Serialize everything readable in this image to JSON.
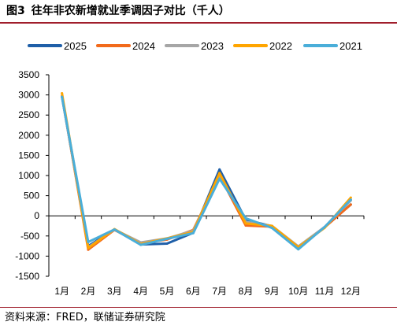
{
  "header": {
    "figure_label": "图3",
    "title": "往年非农新增就业季调因子对比（千人）"
  },
  "footer": {
    "source": "资料来源：FRED，联储证券研究院"
  },
  "chart_data": {
    "type": "line",
    "title": "往年非农新增就业季调因子对比（千人）",
    "xlabel": "",
    "ylabel": "",
    "categories": [
      "1月",
      "2月",
      "3月",
      "4月",
      "5月",
      "6月",
      "7月",
      "8月",
      "9月",
      "10月",
      "11月",
      "12月"
    ],
    "yticks": [
      "3500",
      "3000",
      "2500",
      "2000",
      "1500",
      "1000",
      "500",
      "0",
      "-500",
      "-1000",
      "-1500"
    ],
    "ylim": [
      -1500,
      3500
    ],
    "grid": false,
    "legend_position": "top",
    "series": [
      {
        "name": "2025",
        "color": "#1f5fa8",
        "values": [
          2950,
          -750,
          -340,
          -710,
          -690,
          -420,
          1150,
          -100,
          -260,
          -800,
          -280,
          280
        ]
      },
      {
        "name": "2024",
        "color": "#f26a1b",
        "values": [
          2980,
          -840,
          -350,
          -680,
          -590,
          -350,
          1000,
          -240,
          -270,
          -780,
          -290,
          280
        ]
      },
      {
        "name": "2023",
        "color": "#a6a6a6",
        "values": [
          2970,
          -780,
          -340,
          -660,
          -560,
          -370,
          1020,
          -150,
          -250,
          -760,
          -280,
          380
        ]
      },
      {
        "name": "2022",
        "color": "#ffa500",
        "values": [
          3040,
          -800,
          -330,
          -700,
          -560,
          -400,
          1060,
          -190,
          -250,
          -780,
          -300,
          450
        ]
      },
      {
        "name": "2021",
        "color": "#4aaed9",
        "values": [
          2950,
          -650,
          -340,
          -720,
          -570,
          -430,
          920,
          -60,
          -300,
          -830,
          -280,
          400
        ]
      }
    ]
  }
}
